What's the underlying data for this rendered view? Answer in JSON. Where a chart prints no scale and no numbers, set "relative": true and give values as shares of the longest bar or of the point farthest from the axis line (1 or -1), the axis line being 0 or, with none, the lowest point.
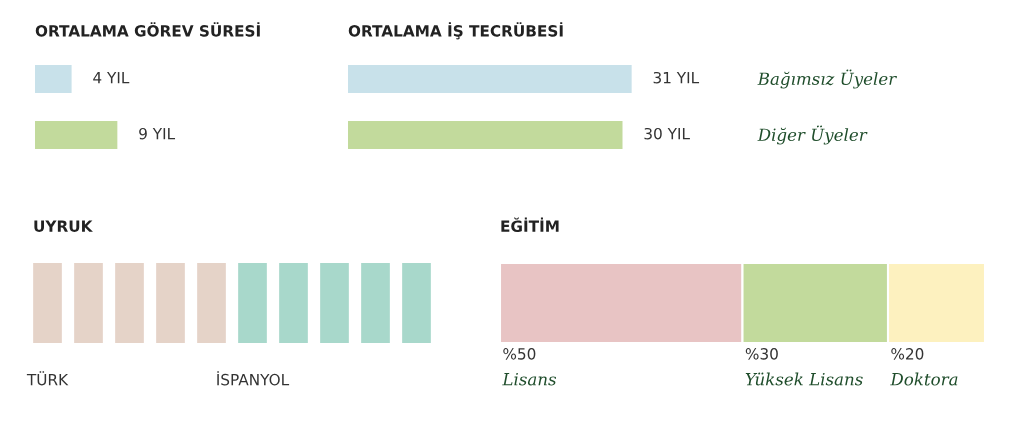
{
  "chart_data": [
    {
      "type": "bar",
      "orientation": "horizontal",
      "title": "ORTALAMA GÖREV SÜRESİ",
      "categories": [
        null,
        null
      ],
      "values": [
        4,
        9
      ],
      "colors": [
        "#c8e1ea",
        "#c2da9c"
      ],
      "value_labels": [
        "4 YIL",
        "9 YIL"
      ],
      "tick_labels": false
    },
    {
      "type": "bar",
      "orientation": "horizontal",
      "title": "ORTALAMA İŞ TECRÜBESİ",
      "categories": [
        "Bağımsız Üyeler",
        "Diğer Üyeler"
      ],
      "values": [
        31,
        30
      ],
      "colors": [
        "#c8e1ea",
        "#c2da9c"
      ],
      "value_labels": [
        "31 YIL",
        "30 YIL"
      ],
      "tick_labels": "y"
    },
    {
      "type": "bar",
      "relative": true,
      "title": "UYRUK",
      "categories": [
        "TÜRK",
        null,
        null,
        null,
        null,
        "İSPANYOL",
        null,
        null,
        null,
        null
      ],
      "values": [
        1,
        1,
        1,
        1,
        1,
        1,
        1,
        1,
        1,
        1
      ],
      "colors": [
        "#e5d3c8",
        "#e5d3c8",
        "#e5d3c8",
        "#e5d3c8",
        "#e5d3c8",
        "#a8d8cb",
        "#a8d8cb",
        "#a8d8cb",
        "#a8d8cb",
        "#a8d8cb"
      ],
      "tick_labels": "x"
    },
    {
      "type": "bar",
      "orientation": "horizontal",
      "stacked": true,
      "title": "EĞİTİM",
      "categories": [
        null
      ],
      "tick_labels": false,
      "series": [
        {
          "name": "Lisans",
          "color": "#e8c4c4",
          "values": [
            50
          ],
          "value_labels": [
            "%50"
          ]
        },
        {
          "name": "Yüksek Lisans",
          "color": "#c2da9c",
          "values": [
            30
          ],
          "value_labels": [
            "%30"
          ]
        },
        {
          "name": "Doktora",
          "color": "#fdf1bf",
          "values": [
            20
          ],
          "value_labels": [
            "%20"
          ]
        }
      ]
    }
  ]
}
